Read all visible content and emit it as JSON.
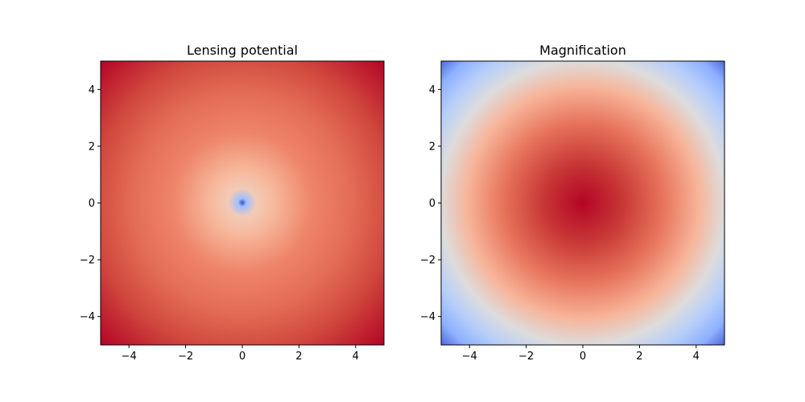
{
  "chart_data": [
    {
      "type": "heatmap",
      "title": "Lensing potential",
      "xlabel": "",
      "ylabel": "",
      "xlim": [
        -5,
        5
      ],
      "ylim": [
        -5,
        5
      ],
      "xticks": [
        "−4",
        "−2",
        "0",
        "2",
        "4"
      ],
      "yticks": [
        "4",
        "2",
        "0",
        "−2",
        "−4"
      ],
      "tick_values": [
        -4,
        -2,
        0,
        2,
        4
      ],
      "colormap": "coolwarm",
      "field": "increasing with radius from a minimum at the origin",
      "colors": [
        "#3b4cc0",
        "#f7b89c",
        "#e8765c",
        "#b40426"
      ],
      "grid": false
    },
    {
      "type": "heatmap",
      "title": "Magnification",
      "xlabel": "",
      "ylabel": "",
      "xlim": [
        -5,
        5
      ],
      "ylim": [
        -5,
        5
      ],
      "xticks": [
        "−4",
        "−2",
        "0",
        "2",
        "4"
      ],
      "yticks": [
        "4",
        "2",
        "0",
        "−2",
        "−4"
      ],
      "tick_values": [
        -4,
        -2,
        0,
        2,
        4
      ],
      "colormap": "coolwarm",
      "field": "decreasing with radius from a maximum at the origin",
      "colors": [
        "#b40426",
        "#e8765c",
        "#f7b89c",
        "#dddcdc",
        "#9ebeff",
        "#3b4cc0"
      ],
      "grid": false
    }
  ]
}
